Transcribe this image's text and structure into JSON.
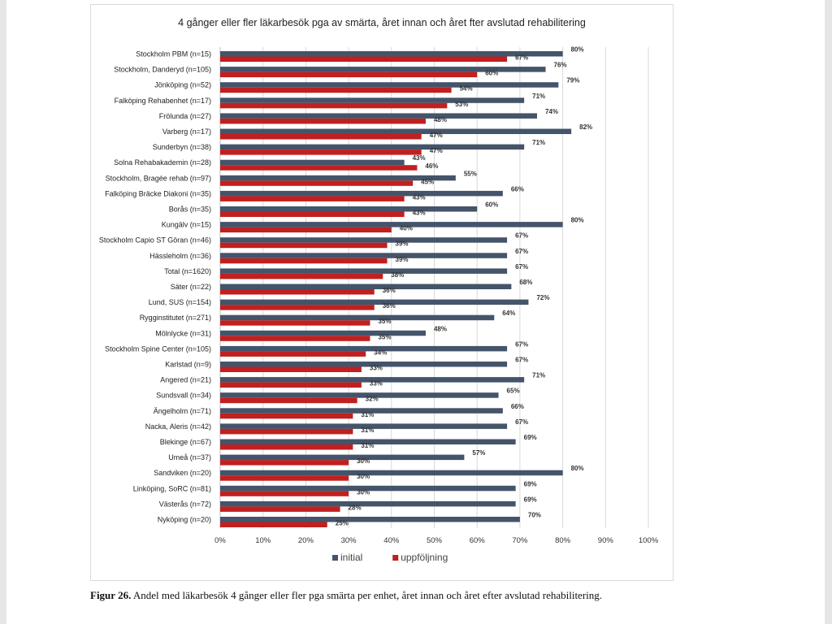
{
  "chart_data": {
    "type": "bar",
    "orientation": "horizontal",
    "title": "4 gånger eller fler läkarbesök pga av smärta, året innan och året fter avslutad rehabilitering",
    "categories": [
      "Stockholm PBM (n=15)",
      "Stockholm, Danderyd (n=105)",
      "Jönköping (n=52)",
      "Falköping Rehabenhet (n=17)",
      "Frölunda (n=27)",
      "Varberg (n=17)",
      "Sunderbyn (n=38)",
      "Solna Rehabakademin (n=28)",
      "Stockholm, Bragée rehab (n=97)",
      "Falköping Bräcke Diakoni (n=35)",
      "Borås (n=35)",
      "Kungälv (n=15)",
      "Stockholm Capio ST Göran (n=46)",
      "Hässleholm (n=36)",
      "Total (n=1620)",
      "Säter (n=22)",
      "Lund, SUS (n=154)",
      "Rygginstitutet (n=271)",
      "Mölnlycke (n=31)",
      "Stockholm Spine Center (n=105)",
      "Karlstad (n=9)",
      "Angered (n=21)",
      "Sundsvall (n=34)",
      "Ängelholm (n=71)",
      "Nacka, Aleris (n=42)",
      "Blekinge (n=67)",
      "Umeå (n=37)",
      "Sandviken (n=20)",
      "Linköping, SoRC (n=81)",
      "Västerås (n=72)",
      "Nyköping (n=20)"
    ],
    "series": [
      {
        "name": "initial",
        "color": "#44546a",
        "values": [
          80,
          76,
          79,
          71,
          74,
          82,
          71,
          43,
          55,
          66,
          60,
          80,
          67,
          67,
          67,
          68,
          72,
          64,
          48,
          67,
          67,
          71,
          65,
          66,
          67,
          69,
          57,
          80,
          69,
          69,
          70
        ]
      },
      {
        "name": "uppföljning",
        "color": "#c0201f",
        "values": [
          67,
          60,
          54,
          53,
          48,
          47,
          47,
          46,
          45,
          43,
          43,
          40,
          39,
          39,
          38,
          36,
          36,
          35,
          35,
          34,
          33,
          33,
          32,
          31,
          31,
          31,
          30,
          30,
          30,
          28,
          25
        ]
      }
    ],
    "xlim": [
      0,
      100
    ],
    "xticks": [
      "0%",
      "10%",
      "20%",
      "30%",
      "40%",
      "50%",
      "60%",
      "70%",
      "80%",
      "90%",
      "100%"
    ],
    "value_suffix": "%",
    "grid": "vertical",
    "legend_position": "bottom"
  },
  "caption": {
    "label": "Figur 26.",
    "text": " Andel med läkarbesök 4 gånger eller fler pga smärta  per enhet, året innan och  året efter avslutad rehabilitering."
  }
}
